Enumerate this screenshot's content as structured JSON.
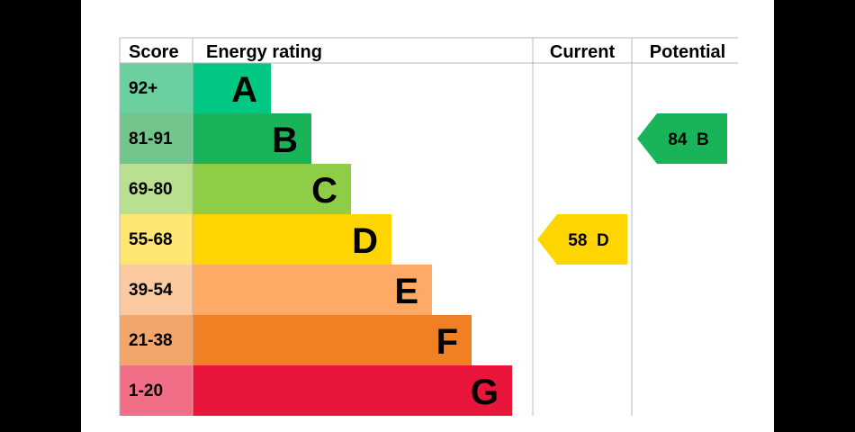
{
  "colors": {
    "page_bg": "#000000",
    "panel_bg": "#ffffff",
    "grid_line": "#b8b8b8"
  },
  "chart_data": {
    "type": "epc-rating",
    "headers": {
      "score": "Score",
      "rating": "Energy rating",
      "current": "Current",
      "potential": "Potential"
    },
    "bands": [
      {
        "letter": "A",
        "range": "92+",
        "min": 92,
        "max": 100,
        "color": "#00c781",
        "score_color": "#6bcf9f"
      },
      {
        "letter": "B",
        "range": "81-91",
        "min": 81,
        "max": 91,
        "color": "#19b459",
        "score_color": "#72c48c"
      },
      {
        "letter": "C",
        "range": "69-80",
        "min": 69,
        "max": 80,
        "color": "#8dce46",
        "score_color": "#b9e08f"
      },
      {
        "letter": "D",
        "range": "55-68",
        "min": 55,
        "max": 68,
        "color": "#ffd500",
        "score_color": "#ffe573"
      },
      {
        "letter": "E",
        "range": "39-54",
        "min": 39,
        "max": 54,
        "color": "#fcaa65",
        "score_color": "#fccaa1"
      },
      {
        "letter": "F",
        "range": "21-38",
        "min": 21,
        "max": 38,
        "color": "#ef8023",
        "score_color": "#f2a66c"
      },
      {
        "letter": "G",
        "range": "1-20",
        "min": 1,
        "max": 20,
        "color": "#e9153b",
        "score_color": "#f06f86"
      }
    ],
    "current": {
      "value": 58,
      "letter": "D",
      "label": "58  D",
      "color": "#ffd500"
    },
    "potential": {
      "value": 84,
      "letter": "B",
      "label": "84  B",
      "color": "#19b459"
    }
  }
}
